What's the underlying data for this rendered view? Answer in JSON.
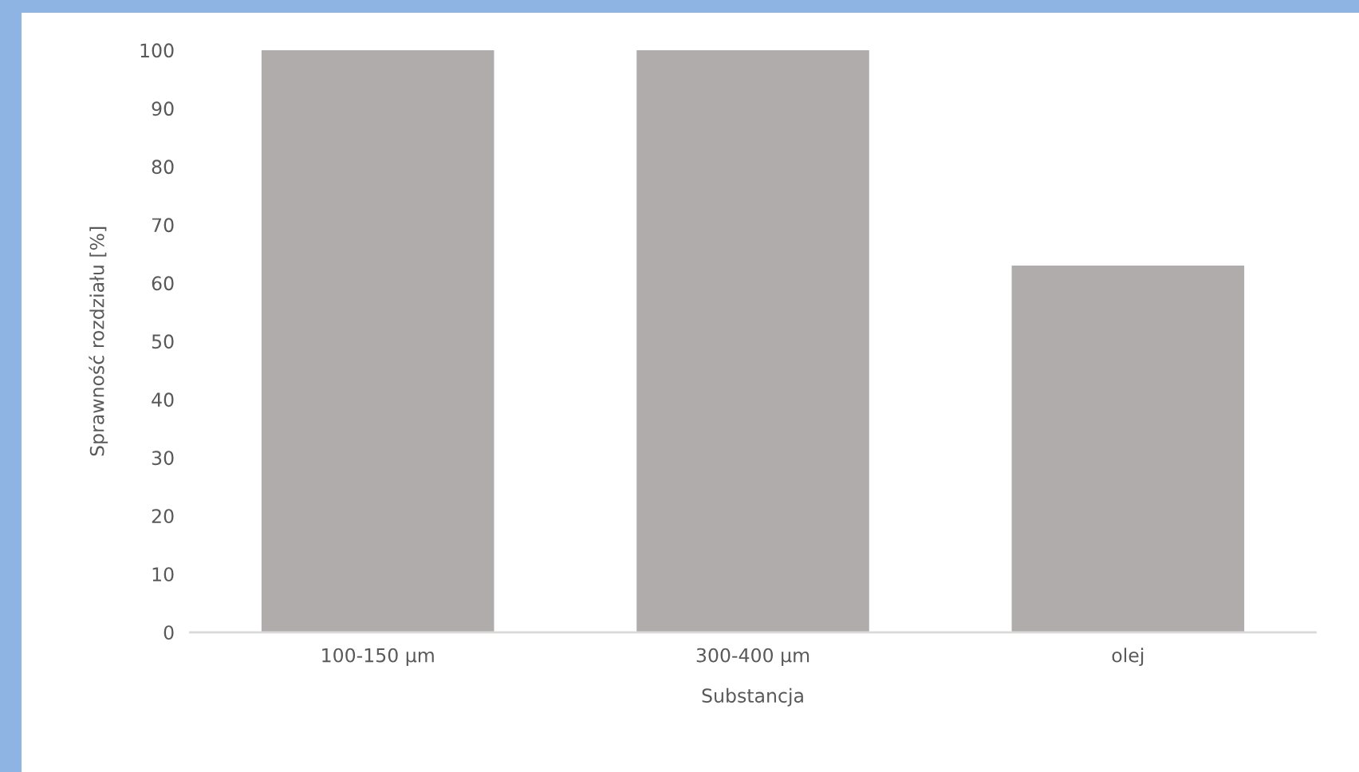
{
  "chart_data": {
    "type": "bar",
    "xlabel": "Substancja",
    "ylabel": "Sprawność rozdziału [%]",
    "categories": [
      "100-150 µm",
      "300-400 µm",
      "olej"
    ],
    "values": [
      100,
      100,
      63
    ],
    "color": "#b0acab",
    "ylim": [
      0,
      100
    ],
    "yticks": [
      0,
      10,
      20,
      30,
      40,
      50,
      60,
      70,
      80,
      90,
      100
    ],
    "grid": false,
    "legend": false
  }
}
